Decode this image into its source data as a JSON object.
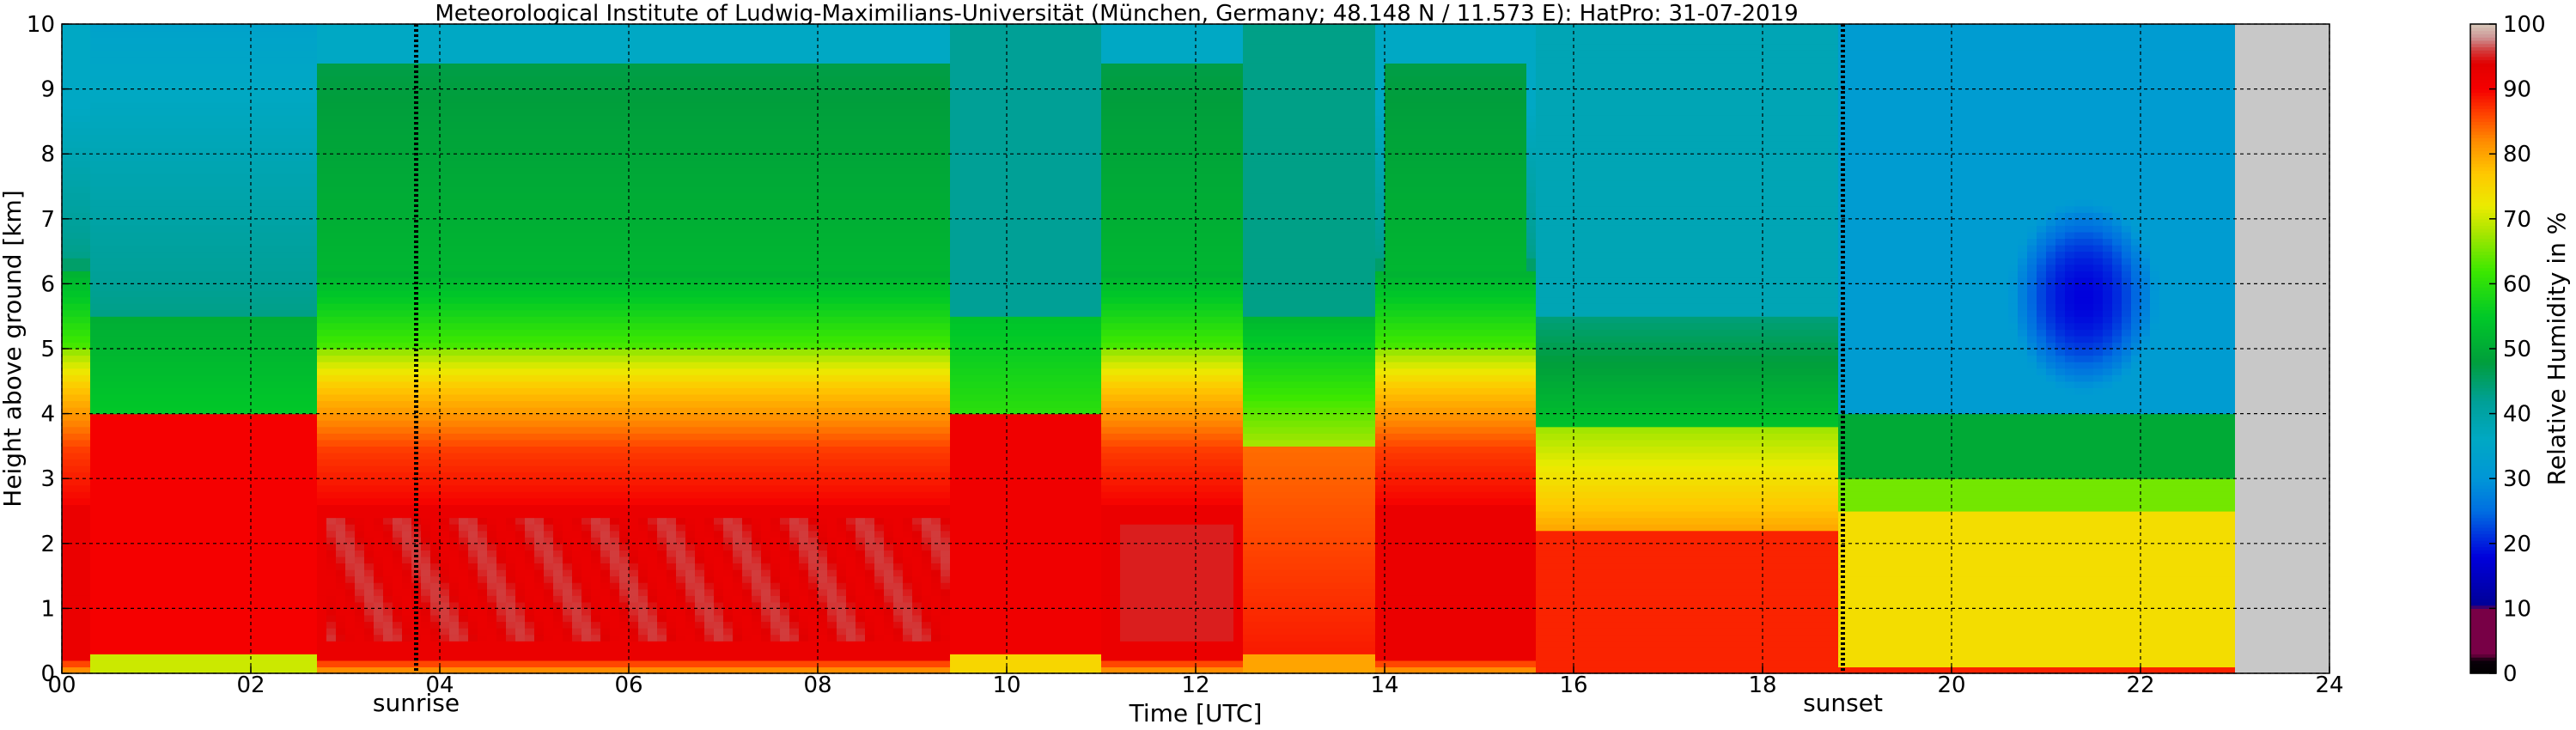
{
  "chart_data": {
    "type": "heatmap",
    "title": "Meteorological Institute of Ludwig-Maximilians-Universität (München, Germany; 48.148 N / 11.573 E):    HatPro: 31-07-2019",
    "xlabel": "Time [UTC]",
    "ylabel": "Height above ground [km]",
    "xlim": [
      0,
      24
    ],
    "ylim": [
      0,
      10
    ],
    "x_ticks": [
      "00",
      "02",
      "04",
      "06",
      "08",
      "10",
      "12",
      "14",
      "16",
      "18",
      "20",
      "22",
      "24"
    ],
    "y_ticks": [
      "0",
      "1",
      "2",
      "3",
      "4",
      "5",
      "6",
      "7",
      "8",
      "9",
      "10"
    ],
    "grid": true,
    "no_data_after_hour": 23.0,
    "colorbar": {
      "label": "Relative Humidity in %",
      "ticks": [
        "0",
        "10",
        "20",
        "30",
        "40",
        "50",
        "60",
        "70",
        "80",
        "90",
        "100"
      ],
      "range": [
        0,
        100
      ]
    },
    "annotations": [
      {
        "label": "sunrise",
        "hour": 3.75
      },
      {
        "label": "sunset",
        "hour": 18.85
      }
    ],
    "column_resolution_hours": 0.1,
    "height_resolution_km": 0.1,
    "scenario_note_removed": true
  }
}
